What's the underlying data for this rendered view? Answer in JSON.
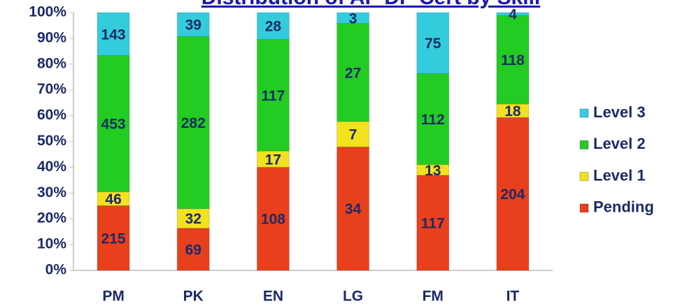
{
  "chart_data": {
    "type": "bar",
    "stacked": "percent",
    "title": "Distribution of AP DP Cert by Skill",
    "categories": [
      "PM",
      "PK",
      "EN",
      "LG",
      "FM",
      "IT"
    ],
    "series": [
      {
        "name": "Pending",
        "color": "#e8401c",
        "values": [
          215,
          69,
          108,
          34,
          117,
          204
        ]
      },
      {
        "name": "Level 1",
        "color": "#f2e21e",
        "values": [
          46,
          32,
          17,
          7,
          13,
          18
        ]
      },
      {
        "name": "Level 2",
        "color": "#22cc22",
        "values": [
          453,
          282,
          117,
          27,
          112,
          118
        ]
      },
      {
        "name": "Level 3",
        "color": "#33ccdd",
        "values": [
          143,
          39,
          28,
          3,
          75,
          4
        ]
      }
    ],
    "ylim": [
      0,
      100
    ],
    "yticks": [
      {
        "value": 0,
        "label": "0%"
      },
      {
        "value": 10,
        "label": "10%"
      },
      {
        "value": 20,
        "label": "20%"
      },
      {
        "value": 30,
        "label": "30%"
      },
      {
        "value": 40,
        "label": "40%"
      },
      {
        "value": 50,
        "label": "50%"
      },
      {
        "value": 60,
        "label": "60%"
      },
      {
        "value": 70,
        "label": "70%"
      },
      {
        "value": 80,
        "label": "80%"
      },
      {
        "value": 90,
        "label": "90%"
      },
      {
        "value": 100,
        "label": "100%"
      }
    ],
    "legend": "right"
  }
}
